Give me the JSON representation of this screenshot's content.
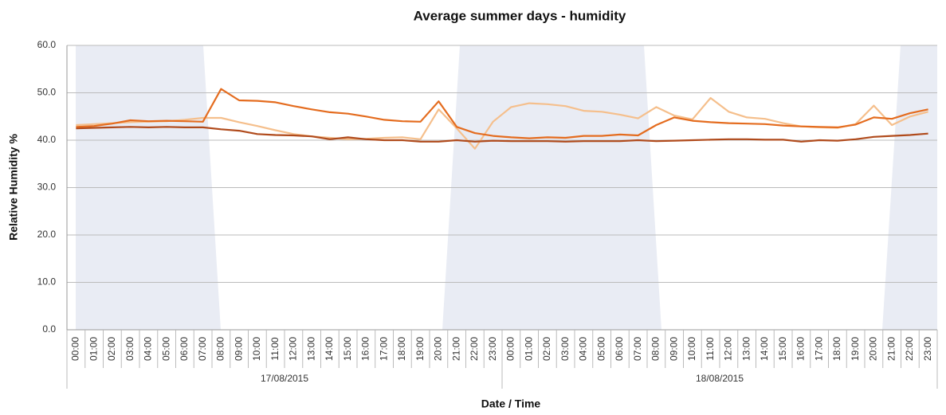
{
  "chart_data": {
    "type": "line",
    "title": "Average summer days - humidity",
    "y_label": "Relative Humidity %",
    "x_label": "Date / Time",
    "categories": [
      "00:00",
      "01:00",
      "02:00",
      "03:00",
      "04:00",
      "05:00",
      "06:00",
      "07:00",
      "08:00",
      "09:00",
      "10:00",
      "11:00",
      "12:00",
      "13:00",
      "14:00",
      "15:00",
      "16:00",
      "17:00",
      "18:00",
      "19:00",
      "20:00",
      "21:00",
      "22:00",
      "23:00",
      "00:00",
      "01:00",
      "02:00",
      "03:00",
      "04:00",
      "05:00",
      "06:00",
      "07:00",
      "08:00",
      "09:00",
      "10:00",
      "11:00",
      "12:00",
      "13:00",
      "14:00",
      "15:00",
      "16:00",
      "17:00",
      "18:00",
      "19:00",
      "20:00",
      "21:00",
      "22:00",
      "23:00"
    ],
    "x_groups": [
      "17/08/2015",
      "18/08/2015"
    ],
    "series": [
      {
        "color": "#f5bf8c",
        "values": [
          43.2,
          43.4,
          43.6,
          43.8,
          43.9,
          44.0,
          44.3,
          44.7,
          44.7,
          43.8,
          43.0,
          42.1,
          41.3,
          40.8,
          40.5,
          40.2,
          40.3,
          40.5,
          40.6,
          40.2,
          46.5,
          42.5,
          38.2,
          43.9,
          47.0,
          47.8,
          47.6,
          47.2,
          46.2,
          46.0,
          45.4,
          44.6,
          47.0,
          45.2,
          44.4,
          48.9,
          46.0,
          44.8,
          44.5,
          43.6,
          42.9,
          42.7,
          42.6,
          43.4,
          47.3,
          43.2,
          45.0,
          46.0
        ]
      },
      {
        "color": "#b04a1b",
        "values": [
          42.5,
          42.6,
          42.7,
          42.8,
          42.7,
          42.8,
          42.7,
          42.7,
          42.3,
          42.0,
          41.3,
          41.1,
          41.0,
          40.8,
          40.2,
          40.6,
          40.2,
          40.0,
          40.0,
          39.7,
          39.7,
          40.0,
          39.7,
          39.9,
          39.8,
          39.8,
          39.8,
          39.7,
          39.8,
          39.8,
          39.8,
          40.0,
          39.8,
          39.9,
          40.0,
          40.1,
          40.2,
          40.2,
          40.1,
          40.1,
          39.7,
          40.0,
          39.9,
          40.2,
          40.7,
          40.9,
          41.1,
          41.4
        ]
      },
      {
        "color": "#e46c1f",
        "values": [
          42.8,
          43.0,
          43.5,
          44.2,
          44.0,
          44.1,
          44.0,
          43.9,
          50.8,
          48.4,
          48.3,
          48.0,
          47.2,
          46.5,
          45.9,
          45.6,
          45.0,
          44.3,
          44.0,
          43.9,
          48.2,
          42.8,
          41.5,
          40.9,
          40.6,
          40.4,
          40.6,
          40.5,
          40.9,
          40.9,
          41.2,
          41.0,
          43.2,
          44.8,
          44.1,
          43.8,
          43.6,
          43.5,
          43.4,
          43.1,
          42.9,
          42.8,
          42.7,
          43.3,
          44.8,
          44.5,
          45.7,
          46.5
        ]
      }
    ],
    "ylim": [
      0,
      60
    ],
    "yticks": [
      {
        "value": 0,
        "label": "0.0"
      },
      {
        "value": 10,
        "label": "10.0"
      },
      {
        "value": 20,
        "label": "20.0"
      },
      {
        "value": 30,
        "label": "30.0"
      },
      {
        "value": 40,
        "label": "40.0"
      },
      {
        "value": 50,
        "label": "50.0"
      },
      {
        "value": 60,
        "label": "60.0"
      }
    ],
    "grid": true
  }
}
